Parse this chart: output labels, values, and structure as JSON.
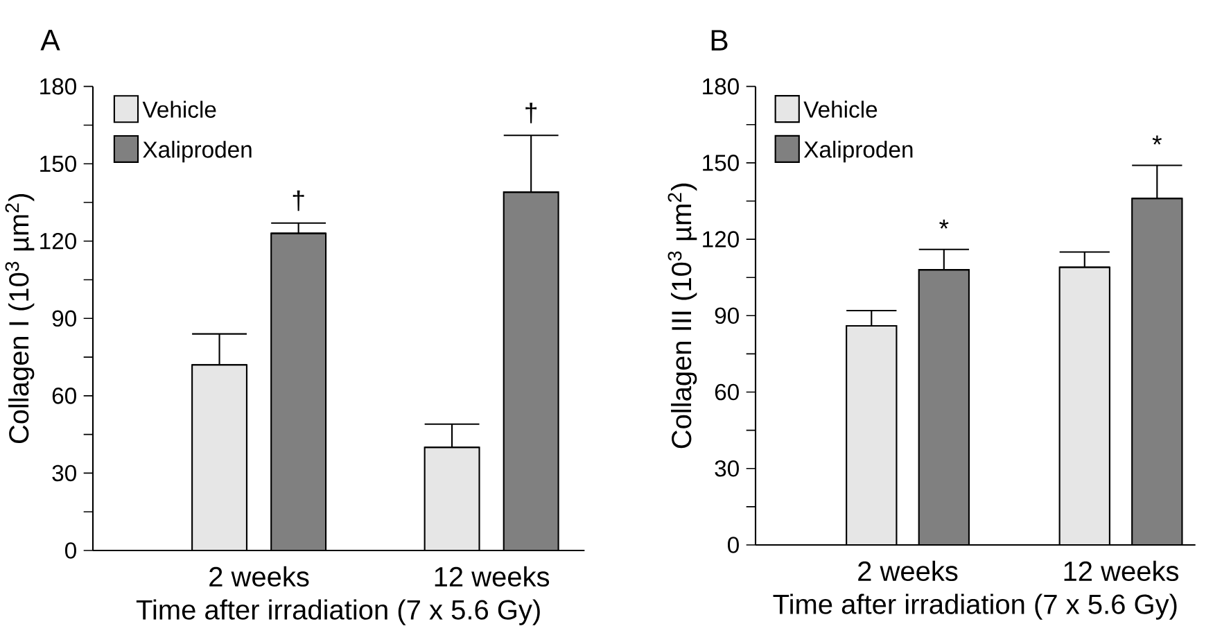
{
  "chart_data": [
    {
      "type": "bar",
      "title": "A",
      "xlabel": "Time after irradiation (7 x 5.6 Gy)",
      "ylabel": "Collagen I (10$^{3}$ µm$^{2}$)",
      "categories": [
        "2 weeks",
        "12 weeks"
      ],
      "series": [
        {
          "name": "Vehicle",
          "color": "#e6e6e6",
          "values": [
            72,
            40
          ],
          "errors": [
            [
              72,
              84
            ],
            [
              40,
              49
            ]
          ]
        },
        {
          "name": "Xaliproden",
          "color": "#808080",
          "values": [
            123,
            139
          ],
          "errors": [
            [
              123,
              127
            ],
            [
              139,
              161
            ]
          ]
        }
      ],
      "ylim": [
        0,
        180
      ],
      "yticks": [
        0,
        {
          "value": 15,
          "label": null
        },
        30,
        {
          "value": 45,
          "label": null
        },
        60,
        {
          "value": 75,
          "label": null
        },
        90,
        {
          "value": 105,
          "label": null
        },
        120,
        {
          "value": 135,
          "label": null
        },
        150,
        {
          "value": 165,
          "label": null
        },
        180
      ],
      "annotations": [
        "†",
        "†"
      ],
      "legend": "top left",
      "grid": false
    },
    {
      "type": "bar",
      "title": "B",
      "xlabel": "Time after irradiation (7 x 5.6 Gy)",
      "ylabel": "Collagen III (10$^{3}$ µm$^{2}$)",
      "categories": [
        "2 weeks",
        "12 weeks"
      ],
      "series": [
        {
          "name": "Vehicle",
          "color": "#e6e6e6",
          "values": [
            86,
            109
          ],
          "errors": [
            [
              86,
              92
            ],
            [
              109,
              115
            ]
          ]
        },
        {
          "name": "Xaliproden",
          "color": "#808080",
          "values": [
            108,
            136
          ],
          "errors": [
            [
              108,
              116
            ],
            [
              136,
              149
            ]
          ]
        }
      ],
      "ylim": [
        0,
        180
      ],
      "yticks": [
        0,
        {
          "value": 15,
          "label": null
        },
        30,
        {
          "value": 45,
          "label": null
        },
        60,
        {
          "value": 75,
          "label": null
        },
        90,
        {
          "value": 105,
          "label": null
        },
        120,
        {
          "value": 135,
          "label": null
        },
        150,
        {
          "value": 165,
          "label": null
        },
        180
      ],
      "annotations": [
        "*",
        "*"
      ],
      "legend": "top left",
      "grid": false
    }
  ]
}
